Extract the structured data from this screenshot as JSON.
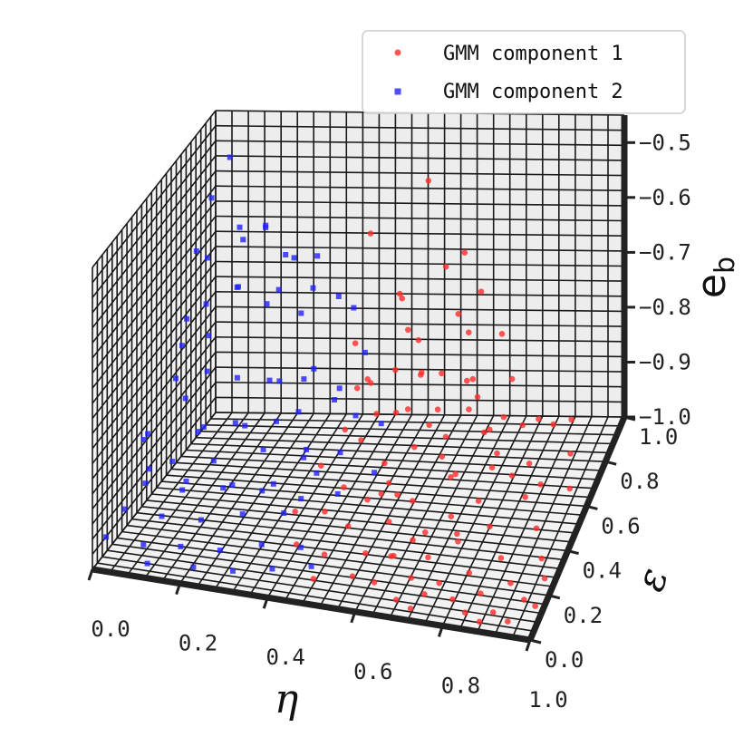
{
  "chart_data": {
    "type": "scatter",
    "title": "",
    "projection": "3d",
    "grid": true,
    "legend_position": "top-right",
    "axes": {
      "x": {
        "label": "η",
        "range": [
          0.0,
          1.0
        ],
        "ticks": [
          "0.0",
          "0.2",
          "0.4",
          "0.6",
          "0.8",
          "1.0"
        ]
      },
      "y": {
        "label": "ε",
        "range": [
          0.0,
          1.0
        ],
        "ticks": [
          "0.0",
          "0.2",
          "0.4",
          "0.6",
          "0.8",
          "1.0"
        ]
      },
      "z": {
        "label": "e",
        "label_sub": "b",
        "range": [
          -1.0,
          -0.45
        ],
        "ticks": [
          "-1.0",
          "-0.9",
          "-0.8",
          "-0.7",
          "-0.6",
          "-0.5"
        ]
      }
    },
    "series": [
      {
        "name": "GMM component 1",
        "color": "#ff2a2a",
        "marker": "circle",
        "points": [
          [
            0.56,
            0.85,
            -0.52
          ],
          [
            0.42,
            0.85,
            -0.62
          ],
          [
            0.62,
            0.78,
            -0.65
          ],
          [
            0.64,
            0.88,
            -0.66
          ],
          [
            0.53,
            0.72,
            -0.69
          ],
          [
            0.66,
            0.74,
            -0.72
          ],
          [
            0.57,
            0.62,
            -0.71
          ],
          [
            0.7,
            0.68,
            -0.73
          ],
          [
            0.55,
            0.58,
            -0.77
          ],
          [
            0.62,
            0.55,
            -0.76
          ],
          [
            0.48,
            0.5,
            -0.78
          ],
          [
            0.72,
            0.58,
            -0.78
          ],
          [
            0.6,
            0.5,
            -0.81
          ],
          [
            0.66,
            0.46,
            -0.82
          ],
          [
            0.75,
            0.56,
            -0.8
          ],
          [
            0.52,
            0.38,
            -0.83
          ],
          [
            0.58,
            0.36,
            -0.86
          ],
          [
            0.64,
            0.4,
            -0.84
          ],
          [
            0.7,
            0.42,
            -0.86
          ],
          [
            0.78,
            0.5,
            -0.84
          ],
          [
            0.5,
            0.3,
            -0.89
          ],
          [
            0.56,
            0.28,
            -0.9
          ],
          [
            0.6,
            0.32,
            -0.88
          ],
          [
            0.66,
            0.3,
            -0.9
          ],
          [
            0.73,
            0.38,
            -0.88
          ],
          [
            0.82,
            0.46,
            -0.86
          ],
          [
            0.53,
            0.22,
            -0.93
          ],
          [
            0.62,
            0.24,
            -0.92
          ],
          [
            0.68,
            0.22,
            -0.94
          ],
          [
            0.75,
            0.3,
            -0.92
          ],
          [
            0.8,
            0.36,
            -0.91
          ],
          [
            0.86,
            0.44,
            -0.89
          ],
          [
            0.58,
            0.18,
            -0.96
          ],
          [
            0.65,
            0.16,
            -0.95
          ],
          [
            0.72,
            0.2,
            -0.96
          ],
          [
            0.78,
            0.24,
            -0.94
          ],
          [
            0.84,
            0.3,
            -0.93
          ],
          [
            0.9,
            0.4,
            -0.91
          ],
          [
            0.62,
            0.1,
            -0.98
          ],
          [
            0.7,
            0.12,
            -0.97
          ],
          [
            0.76,
            0.14,
            -0.98
          ],
          [
            0.82,
            0.18,
            -0.97
          ],
          [
            0.88,
            0.24,
            -0.96
          ],
          [
            0.94,
            0.34,
            -0.94
          ],
          [
            0.68,
            0.06,
            -0.99
          ],
          [
            0.74,
            0.08,
            -0.98
          ],
          [
            0.8,
            0.1,
            -0.99
          ],
          [
            0.86,
            0.12,
            -0.98
          ],
          [
            0.92,
            0.16,
            -0.97
          ],
          [
            0.97,
            0.26,
            -0.96
          ],
          [
            0.72,
            0.03,
            -0.99
          ],
          [
            0.84,
            0.05,
            -0.99
          ],
          [
            0.9,
            0.07,
            -0.99
          ],
          [
            0.96,
            0.12,
            -0.98
          ],
          [
            0.99,
            0.2,
            -0.97
          ],
          [
            0.88,
            0.02,
            -0.99
          ],
          [
            0.94,
            0.04,
            -0.99
          ],
          [
            0.99,
            0.1,
            -0.98
          ],
          [
            0.6,
            0.4,
            -0.93
          ],
          [
            0.55,
            0.45,
            -0.95
          ],
          [
            0.7,
            0.55,
            -0.94
          ],
          [
            0.77,
            0.62,
            -0.95
          ],
          [
            0.84,
            0.7,
            -0.97
          ],
          [
            0.66,
            0.62,
            -0.9
          ],
          [
            0.74,
            0.72,
            -0.92
          ],
          [
            0.8,
            0.8,
            -0.94
          ],
          [
            0.5,
            0.6,
            -0.86
          ],
          [
            0.46,
            0.7,
            -0.84
          ],
          [
            0.58,
            0.7,
            -0.82
          ],
          [
            0.64,
            0.66,
            -0.8
          ],
          [
            0.68,
            0.8,
            -0.86
          ],
          [
            0.76,
            0.86,
            -0.88
          ],
          [
            0.86,
            0.86,
            -0.96
          ],
          [
            0.92,
            0.78,
            -0.98
          ],
          [
            0.96,
            0.6,
            -0.97
          ],
          [
            0.9,
            0.56,
            -0.95
          ],
          [
            0.52,
            0.44,
            -0.74
          ],
          [
            0.46,
            0.56,
            -0.72
          ],
          [
            0.6,
            0.6,
            -0.72
          ],
          [
            0.54,
            0.66,
            -0.66
          ],
          [
            0.7,
            0.8,
            -0.7
          ],
          [
            0.76,
            0.76,
            -0.76
          ],
          [
            0.68,
            0.34,
            -0.97
          ],
          [
            0.74,
            0.4,
            -0.99
          ],
          [
            0.62,
            0.26,
            -0.99
          ],
          [
            0.56,
            0.14,
            -0.99
          ],
          [
            0.48,
            0.2,
            -0.98
          ],
          [
            0.44,
            0.36,
            -0.96
          ],
          [
            0.4,
            0.48,
            -0.92
          ],
          [
            0.42,
            0.62,
            -0.9
          ],
          [
            0.5,
            0.78,
            -0.92
          ],
          [
            0.58,
            0.86,
            -0.94
          ],
          [
            0.64,
            0.92,
            -0.96
          ],
          [
            0.72,
            0.94,
            -0.98
          ],
          [
            0.8,
            0.96,
            -0.99
          ],
          [
            0.88,
            0.96,
            -0.99
          ],
          [
            0.48,
            0.1,
            -0.99
          ],
          [
            0.4,
            0.26,
            -0.99
          ],
          [
            0.36,
            0.4,
            -0.98
          ]
        ]
      },
      {
        "name": "GMM component 2",
        "color": "#2020ff",
        "marker": "square",
        "points": [
          [
            0.05,
            0.95,
            -0.52
          ],
          [
            0.12,
            0.82,
            -0.63
          ],
          [
            0.14,
            0.7,
            -0.68
          ],
          [
            0.06,
            0.72,
            -0.72
          ],
          [
            0.1,
            0.6,
            -0.74
          ],
          [
            0.02,
            0.66,
            -0.78
          ],
          [
            0.2,
            0.74,
            -0.72
          ],
          [
            0.26,
            0.82,
            -0.76
          ],
          [
            0.18,
            0.56,
            -0.8
          ],
          [
            0.08,
            0.48,
            -0.82
          ],
          [
            0.24,
            0.62,
            -0.82
          ],
          [
            0.3,
            0.7,
            -0.84
          ],
          [
            0.14,
            0.42,
            -0.85
          ],
          [
            0.02,
            0.38,
            -0.86
          ],
          [
            0.22,
            0.48,
            -0.86
          ],
          [
            0.32,
            0.58,
            -0.86
          ],
          [
            0.38,
            0.72,
            -0.86
          ],
          [
            0.1,
            0.3,
            -0.88
          ],
          [
            0.18,
            0.36,
            -0.89
          ],
          [
            0.28,
            0.42,
            -0.88
          ],
          [
            0.36,
            0.5,
            -0.9
          ],
          [
            0.44,
            0.64,
            -0.88
          ],
          [
            0.06,
            0.22,
            -0.9
          ],
          [
            0.14,
            0.24,
            -0.91
          ],
          [
            0.24,
            0.3,
            -0.91
          ],
          [
            0.32,
            0.36,
            -0.92
          ],
          [
            0.4,
            0.44,
            -0.92
          ],
          [
            0.04,
            0.12,
            -0.92
          ],
          [
            0.12,
            0.14,
            -0.93
          ],
          [
            0.2,
            0.18,
            -0.94
          ],
          [
            0.28,
            0.24,
            -0.94
          ],
          [
            0.36,
            0.3,
            -0.95
          ],
          [
            0.02,
            0.04,
            -0.95
          ],
          [
            0.1,
            0.06,
            -0.96
          ],
          [
            0.18,
            0.08,
            -0.96
          ],
          [
            0.26,
            0.12,
            -0.97
          ],
          [
            0.34,
            0.18,
            -0.97
          ],
          [
            0.42,
            0.22,
            -0.98
          ],
          [
            0.06,
            0.56,
            -0.7
          ],
          [
            0.16,
            0.64,
            -0.66
          ],
          [
            0.24,
            0.7,
            -0.68
          ],
          [
            0.3,
            0.78,
            -0.7
          ],
          [
            0.34,
            0.86,
            -0.74
          ],
          [
            0.1,
            0.86,
            -0.62
          ],
          [
            0.04,
            0.8,
            -0.66
          ],
          [
            0.2,
            0.9,
            -0.68
          ],
          [
            0.08,
            0.4,
            -0.76
          ],
          [
            0.12,
            0.52,
            -0.78
          ],
          [
            0.28,
            0.56,
            -0.8
          ],
          [
            0.34,
            0.64,
            -0.8
          ],
          [
            0.4,
            0.6,
            -0.84
          ],
          [
            0.16,
            0.3,
            -0.82
          ],
          [
            0.22,
            0.4,
            -0.83
          ],
          [
            0.3,
            0.46,
            -0.84
          ],
          [
            0.38,
            0.4,
            -0.88
          ],
          [
            0.44,
            0.5,
            -0.9
          ],
          [
            0.04,
            0.28,
            -0.84
          ],
          [
            0.08,
            0.18,
            -0.86
          ],
          [
            0.16,
            0.2,
            -0.88
          ],
          [
            0.24,
            0.22,
            -0.89
          ],
          [
            0.32,
            0.26,
            -0.9
          ],
          [
            0.4,
            0.3,
            -0.92
          ],
          [
            0.46,
            0.4,
            -0.94
          ],
          [
            0.12,
            0.02,
            -0.98
          ],
          [
            0.22,
            0.04,
            -0.98
          ],
          [
            0.3,
            0.08,
            -0.99
          ],
          [
            0.38,
            0.12,
            -0.99
          ],
          [
            0.46,
            0.16,
            -0.99
          ],
          [
            0.02,
            0.9,
            -0.58
          ],
          [
            0.14,
            0.94,
            -0.64
          ],
          [
            0.26,
            0.96,
            -0.7
          ],
          [
            0.36,
            0.92,
            -0.78
          ],
          [
            0.42,
            0.8,
            -0.82
          ],
          [
            0.48,
            0.72,
            -0.92
          ],
          [
            0.5,
            0.58,
            -0.96
          ],
          [
            0.06,
            0.64,
            -0.6
          ],
          [
            0.18,
            0.8,
            -0.6
          ],
          [
            0.26,
            0.76,
            -0.64
          ]
        ]
      }
    ]
  }
}
